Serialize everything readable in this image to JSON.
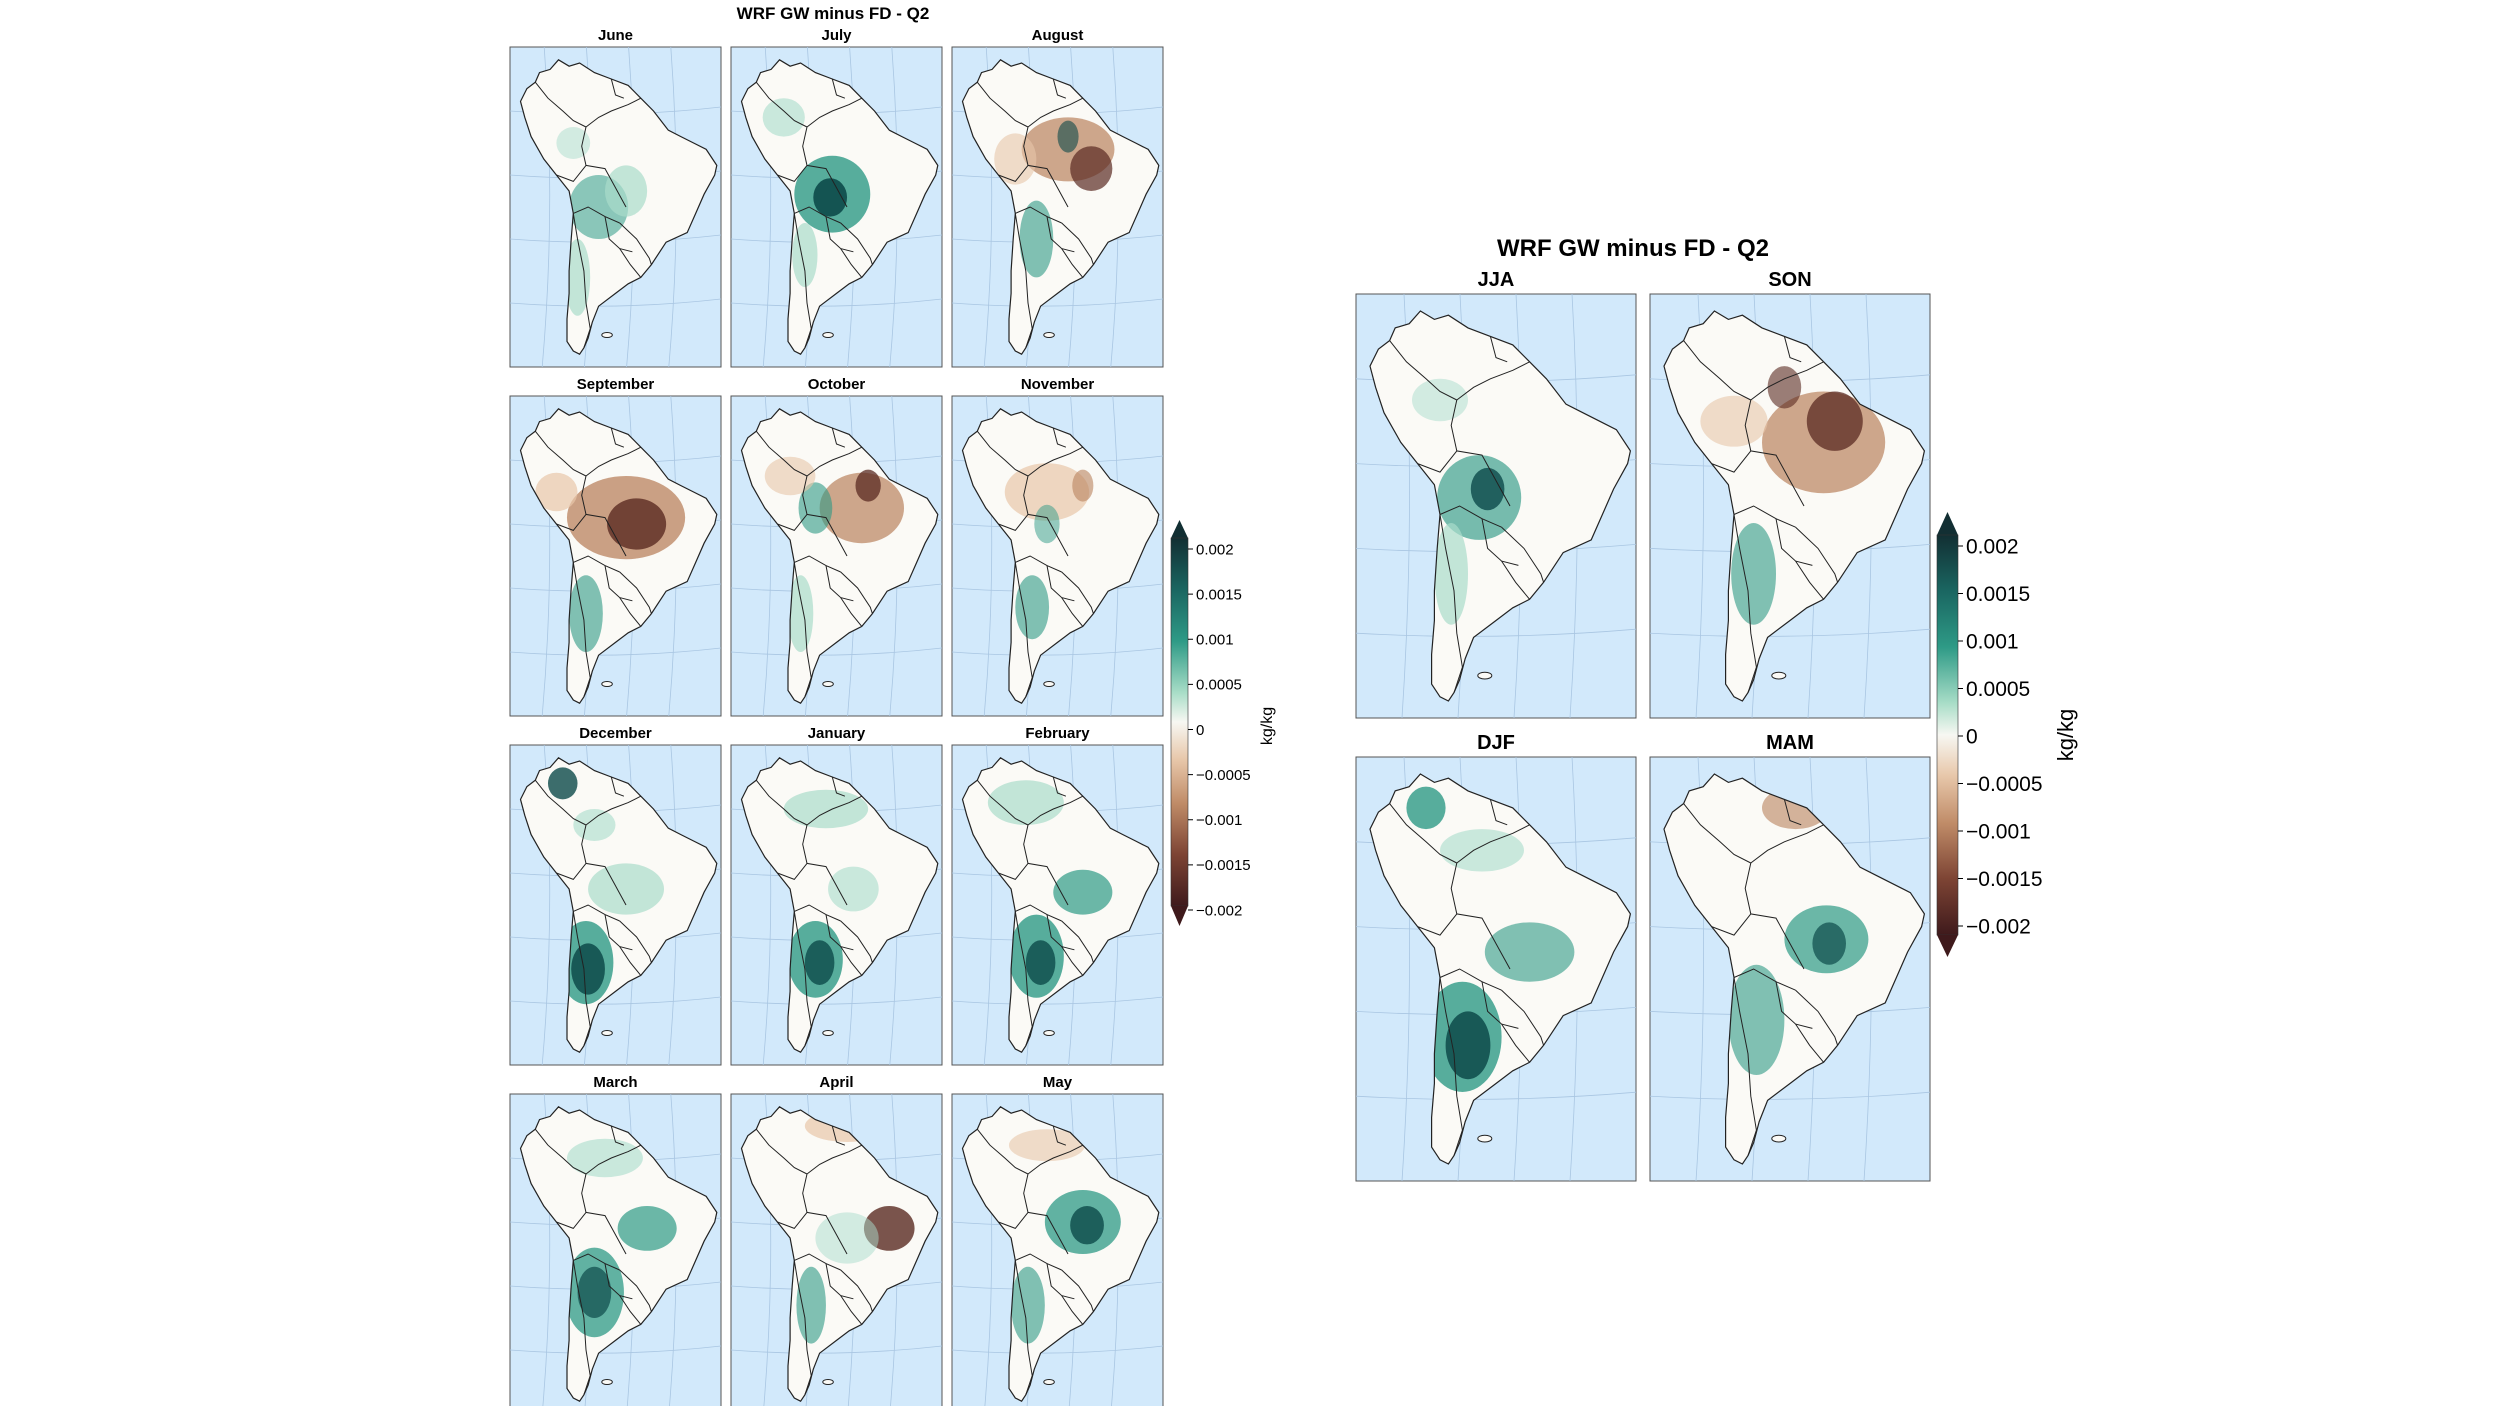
{
  "left_figure": {
    "title": "WRF GW minus FD - Q2",
    "panels": [
      {
        "label": "June",
        "pattern": "jun"
      },
      {
        "label": "July",
        "pattern": "jul"
      },
      {
        "label": "August",
        "pattern": "aug"
      },
      {
        "label": "September",
        "pattern": "sep"
      },
      {
        "label": "October",
        "pattern": "oct"
      },
      {
        "label": "November",
        "pattern": "nov"
      },
      {
        "label": "December",
        "pattern": "dec"
      },
      {
        "label": "January",
        "pattern": "jan"
      },
      {
        "label": "February",
        "pattern": "feb"
      },
      {
        "label": "March",
        "pattern": "mar"
      },
      {
        "label": "April",
        "pattern": "apr"
      },
      {
        "label": "May",
        "pattern": "may"
      }
    ],
    "colorbar": {
      "ticks": [
        "0.002",
        "0.0015",
        "0.001",
        "0.0005",
        "0",
        "−0.0005",
        "−0.001",
        "−0.0015",
        "−0.002"
      ],
      "unit": "kg/kg"
    }
  },
  "right_figure": {
    "title": "WRF GW minus FD - Q2",
    "panels": [
      {
        "label": "JJA",
        "pattern": "jja"
      },
      {
        "label": "SON",
        "pattern": "son"
      },
      {
        "label": "DJF",
        "pattern": "djf"
      },
      {
        "label": "MAM",
        "pattern": "mam"
      }
    ],
    "colorbar": {
      "ticks": [
        "0.002",
        "0.0015",
        "0.001",
        "0.0005",
        "0",
        "−0.0005",
        "−0.001",
        "−0.0015",
        "−0.002"
      ],
      "unit": "kg/kg"
    }
  },
  "colors": {
    "ocean": "#d2e9fb",
    "land": "#fbfaf6",
    "positive_strong": "#0d4a4a",
    "positive_mid": "#2e9a86",
    "positive_weak": "#a9dccb",
    "negative_weak": "#e8c6aa",
    "negative_mid": "#b9825e",
    "negative_strong": "#5a2a22",
    "colorbar_stops": [
      "#122f33",
      "#1a6661",
      "#2e9a86",
      "#a8ddc7",
      "#f7f7f2",
      "#e8c8ab",
      "#c08c68",
      "#7d4434",
      "#3f1a1c"
    ]
  }
}
